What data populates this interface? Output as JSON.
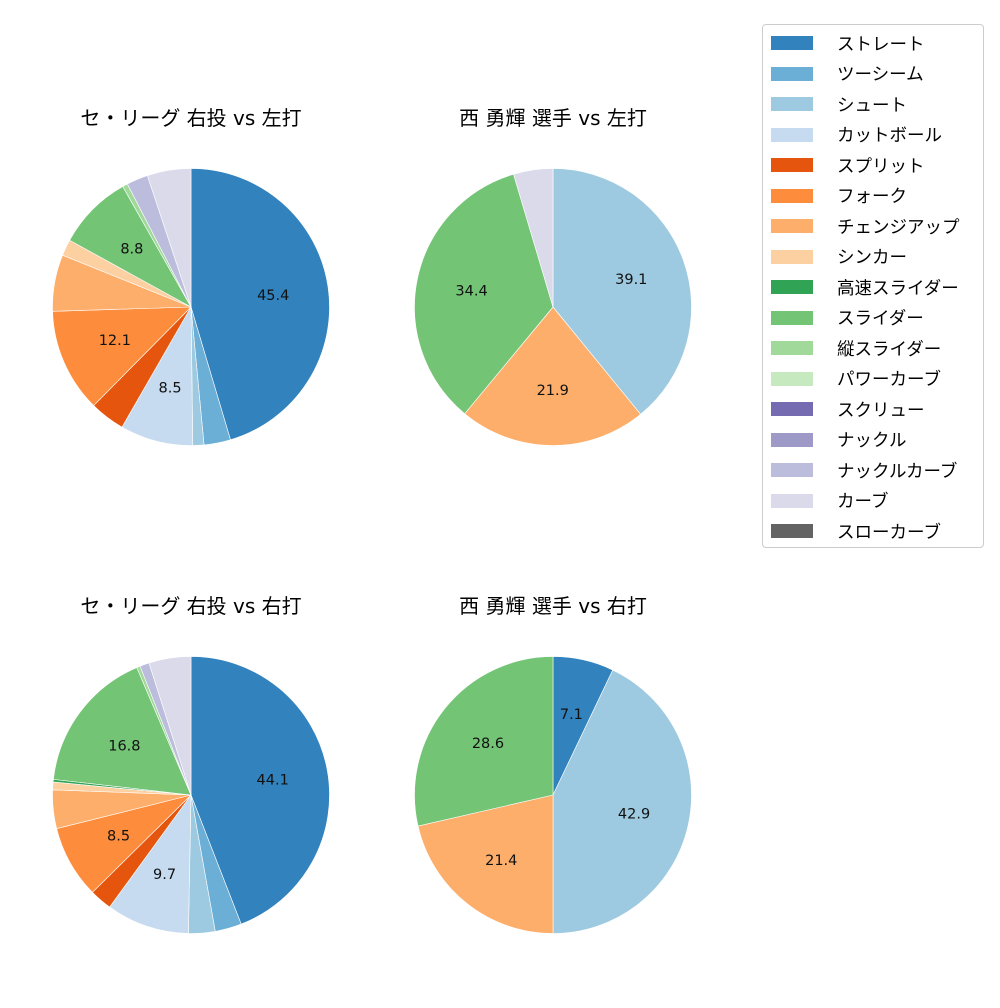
{
  "legend": {
    "items": [
      {
        "label": "ストレート",
        "color": "#3182bd"
      },
      {
        "label": "ツーシーム",
        "color": "#6baed6"
      },
      {
        "label": "シュート",
        "color": "#9ecae1"
      },
      {
        "label": "カットボール",
        "color": "#c6dbef"
      },
      {
        "label": "スプリット",
        "color": "#e6550d"
      },
      {
        "label": "フォーク",
        "color": "#fd8d3c"
      },
      {
        "label": "チェンジアップ",
        "color": "#fdae6b"
      },
      {
        "label": "シンカー",
        "color": "#fdd0a2"
      },
      {
        "label": "高速スライダー",
        "color": "#31a354"
      },
      {
        "label": "スライダー",
        "color": "#74c476"
      },
      {
        "label": "縦スライダー",
        "color": "#a1d99b"
      },
      {
        "label": "パワーカーブ",
        "color": "#c7e9c0"
      },
      {
        "label": "スクリュー",
        "color": "#756bb1"
      },
      {
        "label": "ナックル",
        "color": "#9e9ac8"
      },
      {
        "label": "ナックルカーブ",
        "color": "#bcbddc"
      },
      {
        "label": "カーブ",
        "color": "#dadaeb"
      },
      {
        "label": "スローカーブ",
        "color": "#636363"
      }
    ]
  },
  "chart_data": [
    {
      "type": "pie",
      "title": "セ・リーグ 右投 vs 左打",
      "start_angle": 90,
      "direction": "clockwise",
      "slices": [
        {
          "label": "ストレート",
          "value": 45.4,
          "show_label": true
        },
        {
          "label": "ツーシーム",
          "value": 3.1,
          "show_label": false
        },
        {
          "label": "シュート",
          "value": 1.3,
          "show_label": false
        },
        {
          "label": "カットボール",
          "value": 8.5,
          "show_label": true
        },
        {
          "label": "スプリット",
          "value": 4.1,
          "show_label": false
        },
        {
          "label": "フォーク",
          "value": 12.1,
          "show_label": true
        },
        {
          "label": "チェンジアップ",
          "value": 6.6,
          "show_label": false
        },
        {
          "label": "シンカー",
          "value": 1.9,
          "show_label": false
        },
        {
          "label": "スライダー",
          "value": 8.8,
          "show_label": true
        },
        {
          "label": "縦スライダー",
          "value": 0.6,
          "show_label": false
        },
        {
          "label": "ナックルカーブ",
          "value": 2.5,
          "show_label": false
        },
        {
          "label": "カーブ",
          "value": 5.1,
          "show_label": false
        }
      ]
    },
    {
      "type": "pie",
      "title": "西 勇輝 選手 vs 左打",
      "start_angle": 90,
      "direction": "clockwise",
      "slices": [
        {
          "label": "シュート",
          "value": 39.1,
          "show_label": true
        },
        {
          "label": "チェンジアップ",
          "value": 21.9,
          "show_label": true
        },
        {
          "label": "スライダー",
          "value": 34.4,
          "show_label": true
        },
        {
          "label": "カーブ",
          "value": 4.6,
          "show_label": false
        }
      ]
    },
    {
      "type": "pie",
      "title": "セ・リーグ 右投 vs 右打",
      "start_angle": 90,
      "direction": "clockwise",
      "slices": [
        {
          "label": "ストレート",
          "value": 44.1,
          "show_label": true
        },
        {
          "label": "ツーシーム",
          "value": 3.1,
          "show_label": false
        },
        {
          "label": "シュート",
          "value": 3.1,
          "show_label": false
        },
        {
          "label": "カットボール",
          "value": 9.7,
          "show_label": true
        },
        {
          "label": "スプリット",
          "value": 2.6,
          "show_label": false
        },
        {
          "label": "フォーク",
          "value": 8.5,
          "show_label": true
        },
        {
          "label": "チェンジアップ",
          "value": 4.5,
          "show_label": false
        },
        {
          "label": "シンカー",
          "value": 0.9,
          "show_label": false
        },
        {
          "label": "高速スライダー",
          "value": 0.3,
          "show_label": false
        },
        {
          "label": "スライダー",
          "value": 16.8,
          "show_label": true
        },
        {
          "label": "縦スライダー",
          "value": 0.4,
          "show_label": false
        },
        {
          "label": "ナックルカーブ",
          "value": 1.1,
          "show_label": false
        },
        {
          "label": "カーブ",
          "value": 4.9,
          "show_label": false
        }
      ]
    },
    {
      "type": "pie",
      "title": "西 勇輝 選手 vs 右打",
      "start_angle": 90,
      "direction": "clockwise",
      "slices": [
        {
          "label": "ストレート",
          "value": 7.1,
          "show_label": true
        },
        {
          "label": "シュート",
          "value": 42.9,
          "show_label": true
        },
        {
          "label": "チェンジアップ",
          "value": 21.4,
          "show_label": true
        },
        {
          "label": "スライダー",
          "value": 28.6,
          "show_label": true
        }
      ]
    }
  ]
}
